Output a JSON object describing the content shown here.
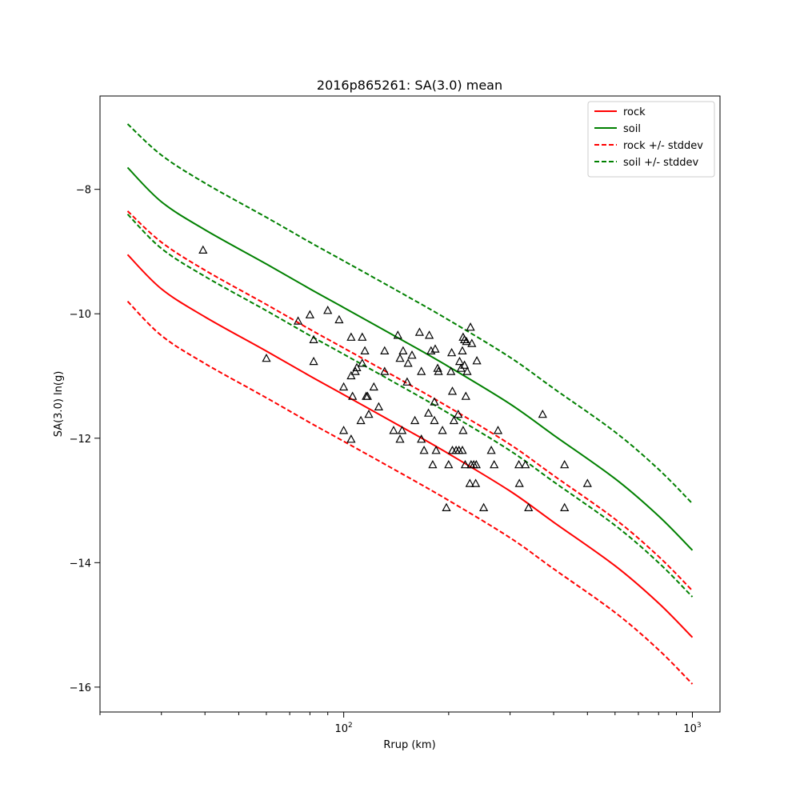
{
  "chart_data": {
    "type": "line",
    "title": "2016p865261: SA(3.0) mean",
    "xlabel": "Rrup (km)",
    "ylabel": "SA(3.0) ln(g)",
    "xscale": "log",
    "xlim": [
      20,
      1200
    ],
    "ylim": [
      -16.4,
      -6.5
    ],
    "x_ticks": [
      {
        "value": 100,
        "base": "10",
        "exp": "2"
      },
      {
        "value": 1000,
        "base": "10",
        "exp": "3"
      }
    ],
    "y_ticks": [
      {
        "value": -16,
        "label": "−16"
      },
      {
        "value": -14,
        "label": "−14"
      },
      {
        "value": -12,
        "label": "−12"
      },
      {
        "value": -10,
        "label": "−10"
      },
      {
        "value": -8,
        "label": "−8"
      }
    ],
    "legend_position": "top-right",
    "x": [
      24,
      30,
      40,
      60,
      80,
      100,
      150,
      200,
      300,
      400,
      600,
      800,
      1000
    ],
    "series": [
      {
        "name": "rock",
        "color": "#ff0000",
        "style": "solid",
        "values": [
          -9.05,
          -9.6,
          -10.05,
          -10.6,
          -11.0,
          -11.3,
          -11.85,
          -12.25,
          -12.85,
          -13.35,
          -14.05,
          -14.65,
          -15.2
        ]
      },
      {
        "name": "soil",
        "color": "#008000",
        "style": "solid",
        "values": [
          -7.65,
          -8.2,
          -8.65,
          -9.2,
          -9.6,
          -9.9,
          -10.45,
          -10.85,
          -11.45,
          -11.95,
          -12.65,
          -13.25,
          -13.8
        ]
      },
      {
        "name": "rock +/- stddev",
        "color": "#ff0000",
        "style": "dashed",
        "values": [
          -8.35,
          -8.85,
          -9.3,
          -9.85,
          -10.25,
          -10.55,
          -11.1,
          -11.5,
          -12.1,
          -12.6,
          -13.3,
          -13.9,
          -14.45
        ]
      },
      {
        "name": "rock +/- stddev",
        "color": "#ff0000",
        "style": "dashed",
        "legend": false,
        "values": [
          -9.8,
          -10.35,
          -10.8,
          -11.35,
          -11.75,
          -12.05,
          -12.6,
          -13.0,
          -13.6,
          -14.1,
          -14.8,
          -15.4,
          -15.95
        ]
      },
      {
        "name": "soil +/- stddev",
        "color": "#008000",
        "style": "dashed",
        "values": [
          -6.95,
          -7.45,
          -7.9,
          -8.45,
          -8.85,
          -9.15,
          -9.7,
          -10.1,
          -10.7,
          -11.2,
          -11.9,
          -12.5,
          -13.05
        ]
      },
      {
        "name": "soil +/- stddev",
        "color": "#008000",
        "style": "dashed",
        "legend": false,
        "values": [
          -8.4,
          -8.95,
          -9.4,
          -9.95,
          -10.35,
          -10.65,
          -11.2,
          -11.6,
          -12.2,
          -12.7,
          -13.4,
          -14.0,
          -14.55
        ]
      }
    ],
    "observations": [
      {
        "x": 39.5,
        "y": -8.98
      },
      {
        "x": 60,
        "y": -10.72
      },
      {
        "x": 74,
        "y": -10.12
      },
      {
        "x": 80,
        "y": -10.02
      },
      {
        "x": 82,
        "y": -10.42
      },
      {
        "x": 82,
        "y": -10.77
      },
      {
        "x": 90,
        "y": -9.95
      },
      {
        "x": 97,
        "y": -10.1
      },
      {
        "x": 100,
        "y": -11.18
      },
      {
        "x": 100,
        "y": -11.88
      },
      {
        "x": 105,
        "y": -10.38
      },
      {
        "x": 105,
        "y": -11.0
      },
      {
        "x": 106,
        "y": -11.33
      },
      {
        "x": 105,
        "y": -12.02
      },
      {
        "x": 108,
        "y": -10.93
      },
      {
        "x": 109,
        "y": -10.87
      },
      {
        "x": 112,
        "y": -11.72
      },
      {
        "x": 113,
        "y": -10.38
      },
      {
        "x": 113,
        "y": -10.8
      },
      {
        "x": 115,
        "y": -10.6
      },
      {
        "x": 116,
        "y": -11.33
      },
      {
        "x": 117,
        "y": -11.33
      },
      {
        "x": 118,
        "y": -11.62
      },
      {
        "x": 122,
        "y": -11.18
      },
      {
        "x": 126,
        "y": -11.5
      },
      {
        "x": 131,
        "y": -10.6
      },
      {
        "x": 131,
        "y": -10.93
      },
      {
        "x": 139,
        "y": -11.88
      },
      {
        "x": 143,
        "y": -10.35
      },
      {
        "x": 145,
        "y": -10.72
      },
      {
        "x": 145,
        "y": -12.02
      },
      {
        "x": 147,
        "y": -11.88
      },
      {
        "x": 148,
        "y": -10.6
      },
      {
        "x": 152,
        "y": -11.1
      },
      {
        "x": 153,
        "y": -10.8
      },
      {
        "x": 157,
        "y": -10.67
      },
      {
        "x": 160,
        "y": -11.72
      },
      {
        "x": 165,
        "y": -10.3
      },
      {
        "x": 167,
        "y": -10.93
      },
      {
        "x": 167,
        "y": -12.02
      },
      {
        "x": 170,
        "y": -12.2
      },
      {
        "x": 175,
        "y": -11.6
      },
      {
        "x": 176,
        "y": -10.35
      },
      {
        "x": 178,
        "y": -10.6
      },
      {
        "x": 180,
        "y": -12.43
      },
      {
        "x": 182,
        "y": -11.42
      },
      {
        "x": 182,
        "y": -11.72
      },
      {
        "x": 183,
        "y": -10.57
      },
      {
        "x": 184,
        "y": -12.2
      },
      {
        "x": 186,
        "y": -10.88
      },
      {
        "x": 187,
        "y": -10.93
      },
      {
        "x": 192,
        "y": -11.88
      },
      {
        "x": 197,
        "y": -13.12
      },
      {
        "x": 200,
        "y": -12.43
      },
      {
        "x": 203,
        "y": -10.93
      },
      {
        "x": 204,
        "y": -10.63
      },
      {
        "x": 205,
        "y": -11.25
      },
      {
        "x": 205,
        "y": -12.2
      },
      {
        "x": 207,
        "y": -11.72
      },
      {
        "x": 210,
        "y": -12.2
      },
      {
        "x": 213,
        "y": -11.62
      },
      {
        "x": 214,
        "y": -12.2
      },
      {
        "x": 215,
        "y": -10.77
      },
      {
        "x": 217,
        "y": -10.88
      },
      {
        "x": 219,
        "y": -10.6
      },
      {
        "x": 219,
        "y": -12.2
      },
      {
        "x": 220,
        "y": -11.88
      },
      {
        "x": 220,
        "y": -10.38
      },
      {
        "x": 222,
        "y": -10.42
      },
      {
        "x": 222,
        "y": -10.83
      },
      {
        "x": 223,
        "y": -12.43
      },
      {
        "x": 224,
        "y": -11.33
      },
      {
        "x": 225,
        "y": -10.45
      },
      {
        "x": 226,
        "y": -10.93
      },
      {
        "x": 230,
        "y": -12.73
      },
      {
        "x": 231,
        "y": -10.22
      },
      {
        "x": 232,
        "y": -12.43
      },
      {
        "x": 233,
        "y": -10.48
      },
      {
        "x": 236,
        "y": -12.43
      },
      {
        "x": 239,
        "y": -12.73
      },
      {
        "x": 240,
        "y": -12.43
      },
      {
        "x": 241,
        "y": -10.76
      },
      {
        "x": 252,
        "y": -13.12
      },
      {
        "x": 265,
        "y": -12.2
      },
      {
        "x": 270,
        "y": -12.43
      },
      {
        "x": 277,
        "y": -11.88
      },
      {
        "x": 318,
        "y": -12.43
      },
      {
        "x": 319,
        "y": -12.73
      },
      {
        "x": 332,
        "y": -12.43
      },
      {
        "x": 339,
        "y": -13.12
      },
      {
        "x": 372,
        "y": -11.62
      },
      {
        "x": 430,
        "y": -12.43
      },
      {
        "x": 430,
        "y": -13.12
      },
      {
        "x": 500,
        "y": -12.73
      }
    ]
  }
}
